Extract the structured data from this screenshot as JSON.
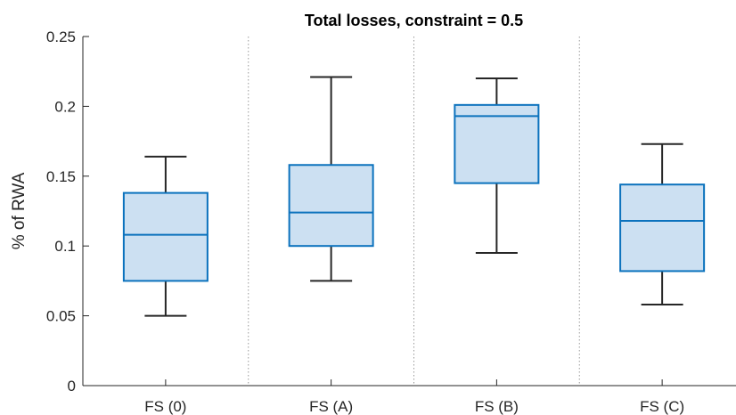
{
  "chart_data": {
    "type": "box",
    "title": "Total losses, constraint = 0.5",
    "xlabel": "",
    "ylabel": "% of RWA",
    "ylim": [
      0,
      0.25
    ],
    "yticks": [
      "0",
      "0.05",
      "0.1",
      "0.15",
      "0.2",
      "0.25"
    ],
    "categories": [
      "FS (0)",
      "FS (A)",
      "FS (B)",
      "FS (C)"
    ],
    "boxes": [
      {
        "category": "FS (0)",
        "whisker_low": 0.05,
        "q1": 0.075,
        "median": 0.108,
        "q3": 0.138,
        "whisker_high": 0.164
      },
      {
        "category": "FS (A)",
        "whisker_low": 0.075,
        "q1": 0.1,
        "median": 0.124,
        "q3": 0.158,
        "whisker_high": 0.221
      },
      {
        "category": "FS (B)",
        "whisker_low": 0.095,
        "q1": 0.145,
        "median": 0.193,
        "q3": 0.201,
        "whisker_high": 0.22
      },
      {
        "category": "FS (C)",
        "whisker_low": 0.058,
        "q1": 0.082,
        "median": 0.118,
        "q3": 0.144,
        "whisker_high": 0.173
      }
    ],
    "grid": false,
    "group_separators": true,
    "colors": {
      "box_fill": "#cce0f2",
      "box_edge": "#0b72bd",
      "whisker": "#262626",
      "axis": "#262626",
      "separator": "#9a9a9a"
    }
  }
}
